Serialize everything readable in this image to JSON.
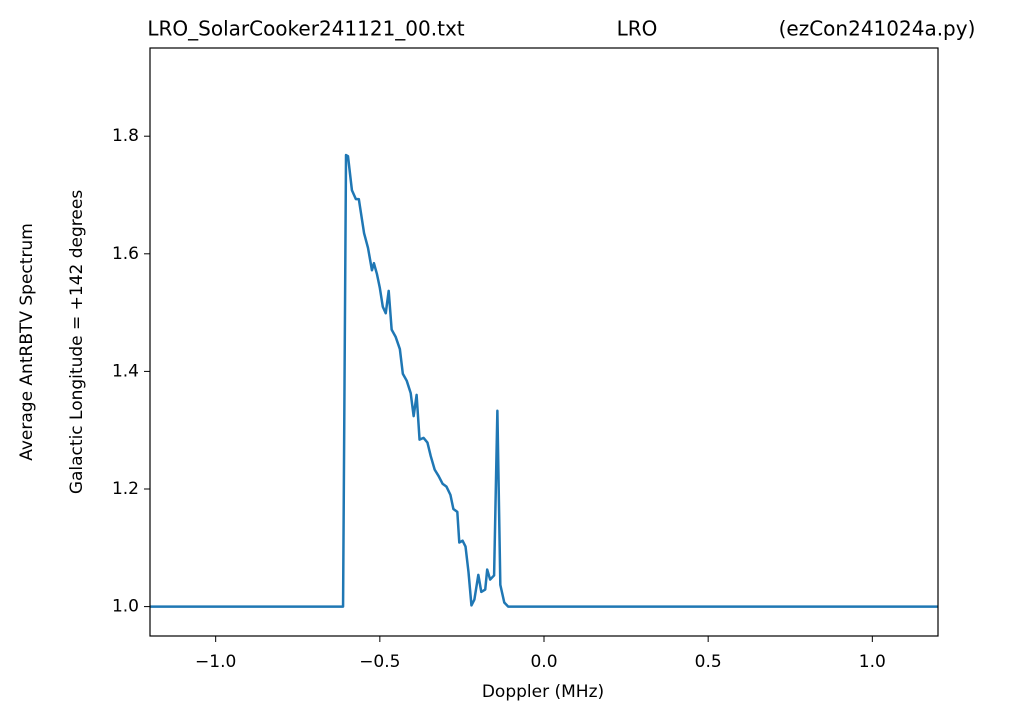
{
  "chart_data": {
    "type": "line",
    "title": [
      "LRO_SolarCooker241121_00.txt",
      "LRO",
      "(ezCon241024a.py)"
    ],
    "xlabel": "Doppler (MHz)",
    "ylabel": [
      "Average AntRBTV Spectrum",
      "Galactic Longitude = +142 degrees"
    ],
    "color": "#1f77b4",
    "x": [
      -1.2,
      -0.612,
      -0.603,
      -0.597,
      -0.585,
      -0.573,
      -0.564,
      -0.548,
      -0.536,
      -0.524,
      -0.518,
      -0.509,
      -0.5,
      -0.491,
      -0.482,
      -0.473,
      -0.464,
      -0.452,
      -0.439,
      -0.43,
      -0.418,
      -0.406,
      -0.397,
      -0.388,
      -0.379,
      -0.367,
      -0.355,
      -0.345,
      -0.333,
      -0.321,
      -0.309,
      -0.297,
      -0.285,
      -0.276,
      -0.264,
      -0.258,
      -0.248,
      -0.239,
      -0.23,
      -0.221,
      -0.212,
      -0.2,
      -0.191,
      -0.179,
      -0.173,
      -0.164,
      -0.152,
      -0.142,
      -0.133,
      -0.121,
      -0.109,
      1.2
    ],
    "values": [
      1.0,
      1.0,
      1.768,
      1.766,
      1.708,
      1.693,
      1.693,
      1.635,
      1.61,
      1.572,
      1.584,
      1.566,
      1.542,
      1.51,
      1.499,
      1.537,
      1.471,
      1.459,
      1.438,
      1.396,
      1.384,
      1.363,
      1.324,
      1.36,
      1.284,
      1.287,
      1.279,
      1.256,
      1.233,
      1.222,
      1.209,
      1.204,
      1.19,
      1.166,
      1.161,
      1.109,
      1.112,
      1.102,
      1.059,
      1.002,
      1.012,
      1.054,
      1.025,
      1.029,
      1.063,
      1.046,
      1.053,
      1.333,
      1.037,
      1.007,
      1.0,
      1.0
    ],
    "xlim": [
      -1.2,
      1.2
    ],
    "ylim": [
      0.95,
      1.95
    ],
    "xticks": [
      {
        "value": -1.0,
        "label": "−1.0"
      },
      {
        "value": -0.5,
        "label": "−0.5"
      },
      {
        "value": 0.0,
        "label": "0.0"
      },
      {
        "value": 0.5,
        "label": "0.5"
      },
      {
        "value": 1.0,
        "label": "1.0"
      }
    ],
    "yticks": [
      {
        "value": 1.0,
        "label": "1.0"
      },
      {
        "value": 1.2,
        "label": "1.2"
      },
      {
        "value": 1.4,
        "label": "1.4"
      },
      {
        "value": 1.6,
        "label": "1.6"
      },
      {
        "value": 1.8,
        "label": "1.8"
      }
    ],
    "grid": false
  }
}
